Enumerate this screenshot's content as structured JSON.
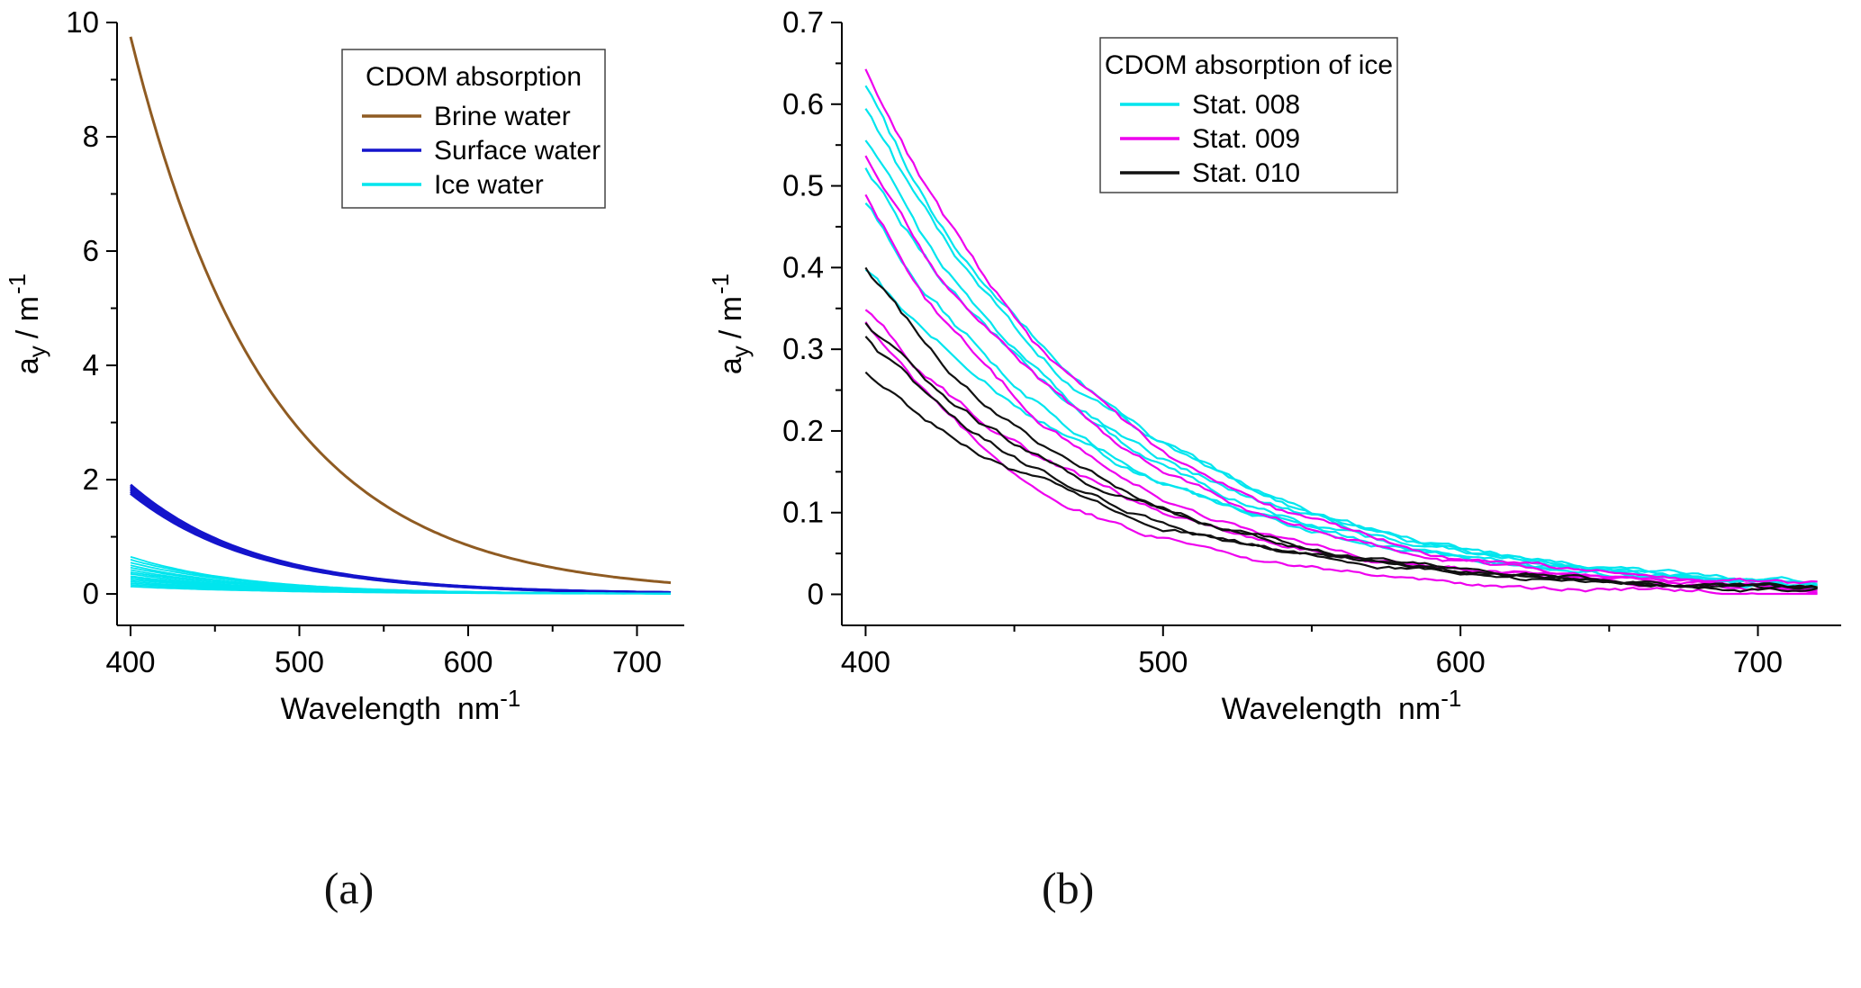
{
  "figure": {
    "background": "#ffffff",
    "panels": [
      {
        "id": "a",
        "label": "(a)"
      },
      {
        "id": "b",
        "label": "(b)"
      }
    ]
  },
  "chart_data": [
    {
      "type": "line",
      "panel": "a",
      "legend": {
        "title": "CDOM absorption",
        "position": "top-right"
      },
      "xlabel": {
        "word": "Wavelength",
        "unit": "nm",
        "sup": "-1"
      },
      "ylabel": {
        "base": "a",
        "sub": "y",
        "unit": "/ m",
        "sup": "-1"
      },
      "xlim": [
        392,
        728
      ],
      "ylim": [
        -0.55,
        10
      ],
      "xticks": {
        "major": [
          400,
          500,
          600,
          700
        ],
        "labels": [
          "400",
          "500",
          "600",
          "700"
        ],
        "minor": [
          450,
          550,
          650
        ]
      },
      "yticks": {
        "major": [
          0,
          2,
          4,
          6,
          8,
          10
        ],
        "labels": [
          "0",
          "2",
          "4",
          "6",
          "8",
          "10"
        ],
        "minor": [
          1,
          3,
          5,
          7,
          9
        ]
      },
      "curve_model": "a = a400 * exp(-slope * (wavelength - 400))",
      "x_range": [
        400,
        720
      ],
      "x_step": 2,
      "series": [
        {
          "name": "Brine water",
          "color": "#8f5b22",
          "line_width": 3,
          "noise": 0,
          "curves": [
            {
              "a400": 9.75,
              "slope": 0.0122
            }
          ]
        },
        {
          "name": "Surface water",
          "color": "#1414cc",
          "line_width": 3,
          "noise": 0,
          "curves": [
            {
              "a400": 1.76,
              "slope": 0.0135
            },
            {
              "a400": 1.79,
              "slope": 0.0135
            },
            {
              "a400": 1.82,
              "slope": 0.0134
            },
            {
              "a400": 1.85,
              "slope": 0.0136
            },
            {
              "a400": 1.88,
              "slope": 0.0135
            },
            {
              "a400": 1.91,
              "slope": 0.0135
            }
          ]
        },
        {
          "name": "Ice water",
          "color": "#00e5ee",
          "line_width": 1.8,
          "noise": 0.003,
          "curves": [
            {
              "a400": 0.65,
              "slope": 0.0145
            },
            {
              "a400": 0.6,
              "slope": 0.014
            },
            {
              "a400": 0.55,
              "slope": 0.0135
            },
            {
              "a400": 0.5,
              "slope": 0.014
            },
            {
              "a400": 0.46,
              "slope": 0.013
            },
            {
              "a400": 0.42,
              "slope": 0.0135
            },
            {
              "a400": 0.38,
              "slope": 0.012
            },
            {
              "a400": 0.35,
              "slope": 0.013
            },
            {
              "a400": 0.31,
              "slope": 0.0125
            },
            {
              "a400": 0.28,
              "slope": 0.012
            },
            {
              "a400": 0.25,
              "slope": 0.0115
            },
            {
              "a400": 0.22,
              "slope": 0.012
            },
            {
              "a400": 0.19,
              "slope": 0.011
            },
            {
              "a400": 0.16,
              "slope": 0.0115
            },
            {
              "a400": 0.13,
              "slope": 0.011
            }
          ]
        }
      ]
    },
    {
      "type": "line",
      "panel": "b",
      "legend": {
        "title": "CDOM absorption of ice",
        "position": "top-center"
      },
      "xlabel": {
        "word": "Wavelength",
        "unit": "nm",
        "sup": "-1"
      },
      "ylabel": {
        "base": "a",
        "sub": "y",
        "unit": "/ m",
        "sup": "-1"
      },
      "xlim": [
        392,
        728
      ],
      "ylim": [
        -0.038,
        0.7
      ],
      "xticks": {
        "major": [
          400,
          500,
          600,
          700
        ],
        "labels": [
          "400",
          "500",
          "600",
          "700"
        ],
        "minor": [
          450,
          550,
          650
        ]
      },
      "yticks": {
        "major": [
          0,
          0.1,
          0.2,
          0.3,
          0.4,
          0.5,
          0.6,
          0.7
        ],
        "labels": [
          "0",
          "0.1",
          "0.2",
          "0.3",
          "0.4",
          "0.5",
          "0.6",
          "0.7"
        ],
        "minor": [
          0.05,
          0.15,
          0.25,
          0.35,
          0.45,
          0.55,
          0.65
        ]
      },
      "curve_model": "a = a400 * exp(-slope * (wavelength - 400))",
      "x_range": [
        400,
        720
      ],
      "x_step": 2,
      "series": [
        {
          "name": "Stat. 008",
          "color": "#00e5ee",
          "line_width": 2.2,
          "noise": 0.01,
          "curves": [
            {
              "a400": 0.625,
              "slope": 0.0122
            },
            {
              "a400": 0.59,
              "slope": 0.0118
            },
            {
              "a400": 0.555,
              "slope": 0.0125
            },
            {
              "a400": 0.52,
              "slope": 0.0113
            },
            {
              "a400": 0.475,
              "slope": 0.012
            },
            {
              "a400": 0.4,
              "slope": 0.0108
            }
          ]
        },
        {
          "name": "Stat. 009",
          "color": "#ee00ee",
          "line_width": 2.2,
          "noise": 0.01,
          "curves": [
            {
              "a400": 0.645,
              "slope": 0.0133
            },
            {
              "a400": 0.54,
              "slope": 0.0128
            },
            {
              "a400": 0.49,
              "slope": 0.014
            },
            {
              "a400": 0.35,
              "slope": 0.0124
            },
            {
              "a400": 0.33,
              "slope": 0.0155
            }
          ]
        },
        {
          "name": "Stat. 010",
          "color": "#111111",
          "line_width": 2.2,
          "noise": 0.009,
          "curves": [
            {
              "a400": 0.4,
              "slope": 0.013
            },
            {
              "a400": 0.335,
              "slope": 0.012
            },
            {
              "a400": 0.315,
              "slope": 0.0126
            },
            {
              "a400": 0.27,
              "slope": 0.0114
            }
          ]
        }
      ]
    }
  ]
}
